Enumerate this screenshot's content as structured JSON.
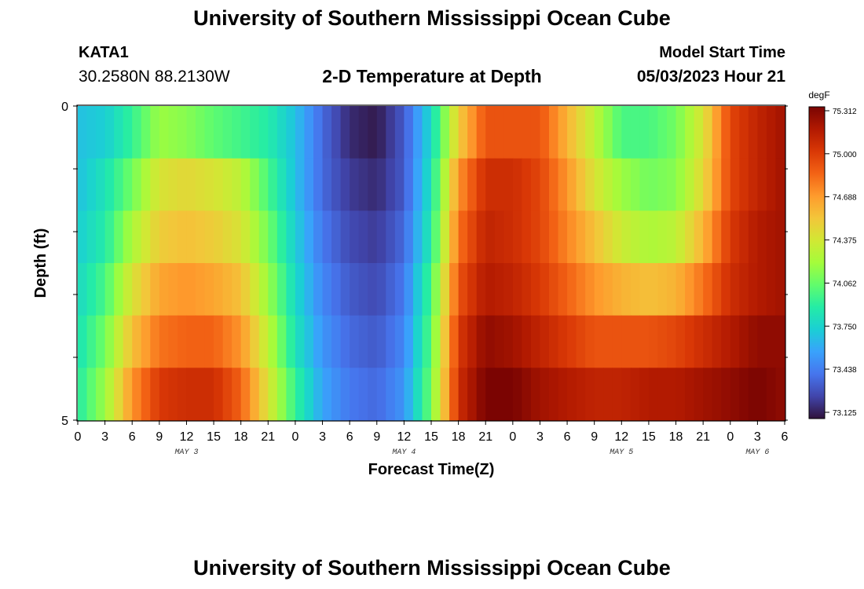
{
  "header": {
    "title": "University of Southern Mississippi Ocean Cube",
    "station_id": "KATA1",
    "station_coords": "30.2580N  88.2130W",
    "plot_title": "2-D Temperature at Depth",
    "start_label": "Model Start Time",
    "start_value": "05/03/2023 Hour 21"
  },
  "footer": {
    "title": "University of Southern Mississippi Ocean Cube"
  },
  "chart_data": {
    "type": "heatmap",
    "title": "2-D Temperature at Depth",
    "xlabel": "Forecast Time(Z)",
    "ylabel": "Depth (ft)",
    "colorbar_unit": "degF",
    "colorbar_ticks": [
      "75.312",
      "75.000",
      "74.688",
      "74.375",
      "74.062",
      "73.750",
      "73.438",
      "73.125"
    ],
    "clim": [
      73.125,
      75.312
    ],
    "colormap": [
      "#30123b",
      "#4145ab",
      "#4675ed",
      "#39a2fc",
      "#1bcfd4",
      "#24eca6",
      "#61fc6c",
      "#a4fc3b",
      "#d1e834",
      "#f3c63a",
      "#fe9b2d",
      "#f36315",
      "#d93806",
      "#b11901",
      "#7a0402"
    ],
    "x_tick_labels": [
      "0",
      "3",
      "6",
      "9",
      "12",
      "15",
      "18",
      "21",
      "0",
      "3",
      "6",
      "9",
      "12",
      "15",
      "18",
      "21",
      "0",
      "3",
      "6",
      "9",
      "12",
      "15",
      "18",
      "21",
      "0",
      "3",
      "6"
    ],
    "x_range_hours": [
      0,
      78
    ],
    "day_labels": [
      {
        "label": "MAY 3",
        "hour": 12
      },
      {
        "label": "MAY 4",
        "hour": 36
      },
      {
        "label": "MAY 5",
        "hour": 60
      },
      {
        "label": "MAY 6",
        "hour": 75
      }
    ],
    "y_tick_labels": [
      "0",
      "5"
    ],
    "ylim": [
      0,
      5
    ],
    "depth_levels_ft": [
      0,
      1,
      2,
      3,
      4,
      5
    ],
    "x_hours": [
      0,
      3,
      6,
      9,
      12,
      15,
      18,
      21,
      24,
      27,
      30,
      33,
      36,
      39,
      42,
      45,
      48,
      51,
      54,
      57,
      60,
      63,
      66,
      69,
      72,
      75,
      78
    ],
    "values": [
      [
        73.7,
        73.75,
        73.95,
        74.2,
        74.15,
        74.05,
        73.98,
        73.9,
        73.7,
        73.4,
        73.2,
        73.15,
        73.35,
        73.8,
        74.5,
        74.9,
        74.9,
        74.9,
        74.6,
        74.3,
        74.0,
        74.0,
        74.1,
        74.4,
        74.95,
        75.1,
        75.2
      ],
      [
        73.7,
        73.85,
        74.1,
        74.4,
        74.45,
        74.4,
        74.3,
        74.0,
        73.7,
        73.4,
        73.25,
        73.2,
        73.35,
        73.85,
        74.7,
        75.05,
        75.05,
        74.95,
        74.7,
        74.4,
        74.2,
        74.1,
        74.15,
        74.45,
        74.95,
        75.1,
        75.2
      ],
      [
        73.75,
        73.9,
        74.25,
        74.5,
        74.55,
        74.5,
        74.4,
        74.1,
        73.75,
        73.45,
        73.3,
        73.25,
        73.4,
        73.9,
        74.8,
        75.1,
        75.05,
        74.95,
        74.75,
        74.55,
        74.35,
        74.25,
        74.3,
        74.6,
        75.0,
        75.15,
        75.2
      ],
      [
        73.8,
        74.0,
        74.4,
        74.65,
        74.7,
        74.65,
        74.55,
        74.2,
        73.8,
        73.5,
        73.35,
        73.3,
        73.45,
        74.0,
        74.9,
        75.15,
        75.1,
        75.0,
        74.85,
        74.7,
        74.6,
        74.55,
        74.6,
        74.8,
        75.05,
        75.15,
        75.2
      ],
      [
        73.85,
        74.1,
        74.55,
        74.8,
        74.85,
        74.85,
        74.7,
        74.3,
        73.85,
        73.55,
        73.4,
        73.35,
        73.5,
        74.05,
        75.0,
        75.25,
        75.2,
        75.1,
        75.0,
        74.9,
        74.9,
        74.9,
        74.95,
        75.05,
        75.15,
        75.25,
        75.25
      ],
      [
        73.9,
        74.2,
        74.7,
        75.0,
        75.05,
        75.05,
        74.85,
        74.4,
        73.95,
        73.6,
        73.45,
        73.4,
        73.55,
        74.1,
        75.05,
        75.31,
        75.31,
        75.2,
        75.15,
        75.1,
        75.1,
        75.15,
        75.15,
        75.2,
        75.25,
        75.31,
        75.25
      ]
    ]
  }
}
